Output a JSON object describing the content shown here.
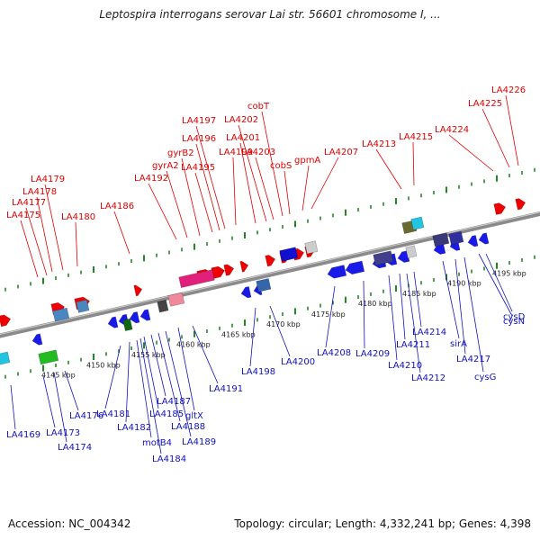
{
  "header": {
    "title": "Leptospira interrogans serovar Lai str. 56601 chromosome I, ..."
  },
  "footer": {
    "accession": "Accession: NC_004342",
    "summary": "Topology: circular; Length: 4,332,241 bp; Genes: 4,398"
  },
  "colors": {
    "forward_label": "#dd0000",
    "reverse_label": "#1111bb",
    "backbone": "#8a8a8a",
    "tick_green": "#228822"
  },
  "scale_labels": [
    "4145 kbp",
    "4150 kbp",
    "4155 kbp",
    "4160 kbp",
    "4165 kbp",
    "4170 kbp",
    "4175 kbp",
    "4180 kbp",
    "4185 kbp",
    "4190 kbp",
    "4195 kbp"
  ],
  "forward_genes": [
    "LA4175",
    "LA4177",
    "LA4178",
    "LA4179",
    "LA4180",
    "LA4186",
    "LA4192",
    "gyrA2",
    "gyrB2",
    "LA4195",
    "LA4196",
    "LA4197",
    "LA4199",
    "LA4201",
    "LA4202",
    "LA4203",
    "cobT",
    "cobS",
    "gpmA",
    "LA4207",
    "LA4213",
    "LA4215",
    "LA4224",
    "LA4225",
    "LA4226"
  ],
  "reverse_genes": [
    "LA4169",
    "LA4173",
    "LA4174",
    "LA4176",
    "LA4181",
    "LA4182",
    "motB4",
    "LA4184",
    "LA4185",
    "LA4187",
    "LA4188",
    "LA4189",
    "gltX",
    "LA4191",
    "LA4198",
    "LA4200",
    "LA4208",
    "LA4209",
    "LA4210",
    "LA4211",
    "LA4212",
    "LA4214",
    "sirA",
    "LA4217",
    "cysG",
    "cysN",
    "cysD"
  ]
}
